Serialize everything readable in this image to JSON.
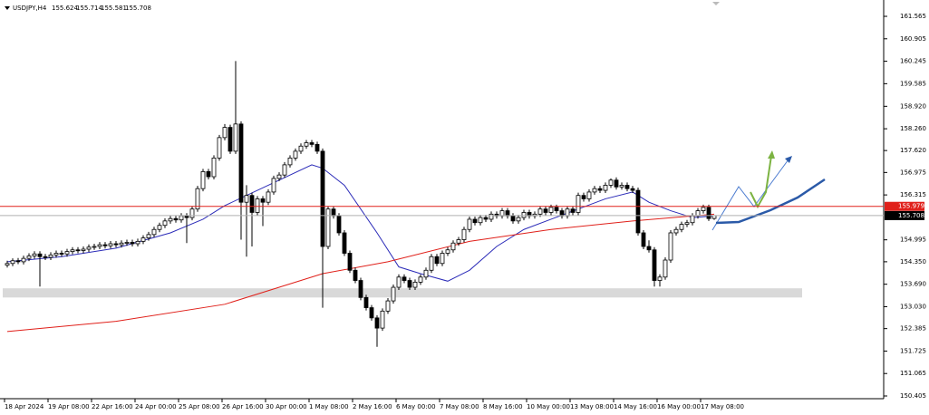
{
  "chart_data": {
    "type": "candlestick",
    "symbol": "USDJPY,H4",
    "ylim": [
      150.325,
      162.045
    ],
    "yticks": [
      {
        "value": 161.565,
        "label": "161.565"
      },
      {
        "value": 160.905,
        "label": "160.905"
      },
      {
        "value": 160.245,
        "label": "160.245"
      },
      {
        "value": 159.585,
        "label": "159.585"
      },
      {
        "value": 158.92,
        "label": "158.920"
      },
      {
        "value": 158.26,
        "label": "158.260"
      },
      {
        "value": 157.62,
        "label": "157.620"
      },
      {
        "value": 156.975,
        "label": "156.975"
      },
      {
        "value": 156.315,
        "label": "156.315"
      },
      {
        "value": 154.995,
        "label": "154.995"
      },
      {
        "value": 154.35,
        "label": "154.350"
      },
      {
        "value": 153.69,
        "label": "153.690"
      },
      {
        "value": 153.03,
        "label": "153.030"
      },
      {
        "value": 152.385,
        "label": "152.385"
      },
      {
        "value": 151.725,
        "label": "151.725"
      },
      {
        "value": 151.065,
        "label": "151.065"
      },
      {
        "value": 150.405,
        "label": "150.405"
      }
    ],
    "categories": [
      "18 Apr 2024",
      null,
      null,
      null,
      null,
      null,
      null,
      null,
      "19 Apr 08:00",
      null,
      null,
      null,
      null,
      null,
      null,
      null,
      "22 Apr 16:00",
      null,
      null,
      null,
      null,
      null,
      null,
      null,
      "24 Apr 00:00",
      null,
      null,
      null,
      null,
      null,
      null,
      null,
      "25 Apr 08:00",
      null,
      null,
      null,
      null,
      null,
      null,
      null,
      "26 Apr 16:00",
      null,
      null,
      null,
      null,
      null,
      null,
      null,
      "30 Apr 00:00",
      null,
      null,
      null,
      null,
      null,
      null,
      null,
      "1 May 08:00",
      null,
      null,
      null,
      null,
      null,
      null,
      null,
      "2 May 16:00",
      null,
      null,
      null,
      null,
      null,
      null,
      null,
      "6 May 00:00",
      null,
      null,
      null,
      null,
      null,
      null,
      null,
      "7 May 08:00",
      null,
      null,
      null,
      null,
      null,
      null,
      null,
      "8 May 16:00",
      null,
      null,
      null,
      null,
      null,
      null,
      null,
      "10 May 00:00",
      null,
      null,
      null,
      null,
      null,
      null,
      null,
      "13 May 08:00",
      null,
      null,
      null,
      null,
      null,
      null,
      null,
      "14 May 16:00",
      null,
      null,
      null,
      null,
      null,
      null,
      null,
      "16 May 00:00",
      null,
      null,
      null,
      null,
      null,
      null,
      null,
      "17 May 08:00",
      null,
      null
    ],
    "ohlc": [
      [
        154.25,
        154.38,
        154.18,
        154.3
      ],
      [
        154.3,
        154.45,
        154.22,
        154.38
      ],
      [
        154.38,
        154.46,
        154.28,
        154.35
      ],
      [
        154.35,
        154.53,
        154.27,
        154.45
      ],
      [
        154.45,
        154.6,
        154.37,
        154.52
      ],
      [
        154.52,
        154.66,
        154.44,
        154.58
      ],
      [
        154.58,
        154.66,
        153.62,
        154.5
      ],
      [
        154.5,
        154.58,
        154.4,
        154.48
      ],
      [
        154.48,
        154.63,
        154.4,
        154.55
      ],
      [
        154.55,
        154.68,
        154.47,
        154.6
      ],
      [
        154.6,
        154.68,
        154.5,
        154.58
      ],
      [
        154.58,
        154.73,
        154.5,
        154.65
      ],
      [
        154.65,
        154.78,
        154.57,
        154.7
      ],
      [
        154.7,
        154.78,
        154.6,
        154.68
      ],
      [
        154.68,
        154.8,
        154.6,
        154.72
      ],
      [
        154.72,
        154.86,
        154.64,
        154.78
      ],
      [
        154.78,
        154.88,
        154.7,
        154.8
      ],
      [
        154.8,
        154.93,
        154.72,
        154.85
      ],
      [
        154.85,
        154.93,
        154.74,
        154.82
      ],
      [
        154.82,
        154.96,
        154.74,
        154.88
      ],
      [
        154.88,
        154.96,
        154.77,
        154.85
      ],
      [
        154.85,
        154.98,
        154.77,
        154.9
      ],
      [
        154.9,
        155.0,
        154.82,
        154.92
      ],
      [
        154.92,
        155.0,
        154.8,
        154.88
      ],
      [
        154.88,
        155.03,
        154.8,
        154.95
      ],
      [
        154.95,
        155.13,
        154.87,
        155.05
      ],
      [
        155.05,
        155.23,
        154.97,
        155.15
      ],
      [
        155.15,
        155.38,
        155.07,
        155.3
      ],
      [
        155.3,
        155.5,
        155.22,
        155.42
      ],
      [
        155.42,
        155.63,
        155.34,
        155.55
      ],
      [
        155.55,
        155.7,
        155.47,
        155.62
      ],
      [
        155.62,
        155.7,
        155.5,
        155.58
      ],
      [
        155.58,
        155.78,
        155.5,
        155.7
      ],
      [
        155.7,
        155.78,
        154.9,
        155.65
      ],
      [
        155.65,
        155.98,
        155.57,
        155.9
      ],
      [
        155.9,
        156.58,
        155.82,
        156.5
      ],
      [
        156.5,
        157.08,
        156.42,
        157.0
      ],
      [
        157.0,
        157.08,
        156.77,
        156.85
      ],
      [
        156.85,
        157.48,
        156.77,
        157.4
      ],
      [
        157.4,
        158.08,
        157.32,
        158.0
      ],
      [
        158.0,
        158.4,
        157.92,
        158.3
      ],
      [
        158.3,
        158.38,
        157.52,
        157.6
      ],
      [
        157.6,
        160.25,
        157.52,
        158.4
      ],
      [
        158.4,
        158.48,
        155.0,
        156.1
      ],
      [
        156.1,
        156.6,
        154.5,
        156.3
      ],
      [
        156.3,
        156.38,
        154.8,
        155.8
      ],
      [
        155.8,
        156.28,
        155.72,
        156.2
      ],
      [
        156.2,
        156.28,
        155.4,
        156.1
      ],
      [
        156.1,
        156.48,
        156.02,
        156.4
      ],
      [
        156.4,
        156.88,
        156.32,
        156.8
      ],
      [
        156.8,
        156.98,
        156.72,
        156.9
      ],
      [
        156.9,
        157.28,
        156.82,
        157.2
      ],
      [
        157.2,
        157.48,
        157.12,
        157.4
      ],
      [
        157.4,
        157.68,
        157.32,
        157.6
      ],
      [
        157.6,
        157.83,
        157.52,
        157.75
      ],
      [
        157.75,
        157.93,
        157.67,
        157.85
      ],
      [
        157.85,
        157.93,
        157.72,
        157.8
      ],
      [
        157.8,
        157.88,
        157.52,
        157.6
      ],
      [
        157.6,
        157.68,
        153.0,
        154.8
      ],
      [
        154.8,
        155.98,
        154.72,
        155.9
      ],
      [
        155.9,
        155.98,
        155.62,
        155.7
      ],
      [
        155.7,
        155.78,
        155.12,
        155.2
      ],
      [
        155.2,
        155.28,
        154.52,
        154.6
      ],
      [
        154.6,
        154.68,
        154.02,
        154.1
      ],
      [
        154.1,
        154.18,
        153.72,
        153.8
      ],
      [
        153.8,
        153.88,
        153.22,
        153.3
      ],
      [
        153.3,
        153.38,
        152.92,
        153.0
      ],
      [
        153.0,
        153.08,
        152.62,
        152.7
      ],
      [
        152.7,
        152.78,
        151.85,
        152.4
      ],
      [
        152.4,
        152.98,
        152.32,
        152.9
      ],
      [
        152.9,
        153.28,
        152.82,
        153.2
      ],
      [
        153.2,
        153.68,
        153.12,
        153.6
      ],
      [
        153.6,
        153.98,
        153.52,
        153.9
      ],
      [
        153.9,
        153.98,
        153.72,
        153.8
      ],
      [
        153.8,
        153.88,
        153.52,
        153.6
      ],
      [
        153.6,
        153.83,
        153.52,
        153.75
      ],
      [
        153.75,
        153.98,
        153.67,
        153.9
      ],
      [
        153.9,
        154.18,
        153.82,
        154.1
      ],
      [
        154.1,
        154.58,
        154.02,
        154.5
      ],
      [
        154.5,
        154.58,
        154.22,
        154.3
      ],
      [
        154.3,
        154.68,
        154.22,
        154.6
      ],
      [
        154.6,
        154.78,
        154.52,
        154.7
      ],
      [
        154.7,
        154.98,
        154.62,
        154.9
      ],
      [
        154.9,
        155.08,
        154.82,
        155.0
      ],
      [
        155.0,
        155.38,
        154.92,
        155.3
      ],
      [
        155.3,
        155.68,
        155.22,
        155.6
      ],
      [
        155.6,
        155.68,
        155.42,
        155.5
      ],
      [
        155.5,
        155.73,
        155.42,
        155.65
      ],
      [
        155.65,
        155.73,
        155.52,
        155.6
      ],
      [
        155.6,
        155.83,
        155.52,
        155.75
      ],
      [
        155.75,
        155.83,
        155.62,
        155.7
      ],
      [
        155.7,
        155.93,
        155.62,
        155.85
      ],
      [
        155.85,
        155.93,
        155.62,
        155.7
      ],
      [
        155.7,
        155.78,
        155.47,
        155.55
      ],
      [
        155.55,
        155.73,
        155.47,
        155.65
      ],
      [
        155.65,
        155.88,
        155.57,
        155.8
      ],
      [
        155.8,
        155.88,
        155.62,
        155.7
      ],
      [
        155.7,
        155.83,
        155.62,
        155.75
      ],
      [
        155.75,
        155.98,
        155.67,
        155.9
      ],
      [
        155.9,
        155.98,
        155.72,
        155.8
      ],
      [
        155.8,
        156.03,
        155.72,
        155.95
      ],
      [
        155.95,
        156.03,
        155.77,
        155.85
      ],
      [
        155.85,
        155.93,
        155.62,
        155.7
      ],
      [
        155.7,
        155.98,
        155.62,
        155.9
      ],
      [
        155.9,
        155.98,
        155.72,
        155.8
      ],
      [
        155.8,
        156.38,
        155.72,
        156.3
      ],
      [
        156.3,
        156.38,
        156.12,
        156.2
      ],
      [
        156.2,
        156.48,
        156.12,
        156.4
      ],
      [
        156.4,
        156.58,
        156.32,
        156.5
      ],
      [
        156.5,
        156.58,
        156.37,
        156.45
      ],
      [
        156.45,
        156.68,
        156.37,
        156.6
      ],
      [
        156.6,
        156.8,
        156.52,
        156.75
      ],
      [
        156.75,
        156.83,
        156.47,
        156.55
      ],
      [
        156.55,
        156.68,
        156.47,
        156.6
      ],
      [
        156.6,
        156.68,
        156.42,
        156.5
      ],
      [
        156.5,
        156.58,
        156.37,
        156.45
      ],
      [
        156.45,
        156.53,
        155.12,
        155.2
      ],
      [
        155.2,
        155.28,
        154.72,
        154.8
      ],
      [
        154.8,
        154.98,
        154.62,
        154.7
      ],
      [
        154.7,
        154.78,
        153.62,
        153.8
      ],
      [
        153.8,
        153.98,
        153.62,
        153.9
      ],
      [
        153.9,
        154.48,
        153.82,
        154.4
      ],
      [
        154.4,
        155.28,
        154.32,
        155.2
      ],
      [
        155.2,
        155.38,
        155.12,
        155.3
      ],
      [
        155.3,
        155.53,
        155.22,
        155.45
      ],
      [
        155.45,
        155.58,
        155.37,
        155.5
      ],
      [
        155.5,
        155.78,
        155.42,
        155.7
      ],
      [
        155.7,
        155.93,
        155.62,
        155.85
      ],
      [
        155.85,
        156.03,
        155.77,
        155.95
      ],
      [
        155.95,
        156.03,
        155.55,
        155.62
      ],
      [
        155.624,
        155.714,
        155.581,
        155.708
      ]
    ],
    "series": [
      {
        "color": "#2b2bb8",
        "x": [
          0,
          10,
          20,
          30,
          36,
          40,
          48,
          56,
          58,
          62,
          68,
          72,
          76,
          81,
          85,
          90,
          95,
          100,
          105,
          110,
          115,
          118,
          122,
          126,
          130
        ],
        "values": [
          154.35,
          154.5,
          154.75,
          155.2,
          155.6,
          156.0,
          156.6,
          157.2,
          157.1,
          156.6,
          155.2,
          154.2,
          154.0,
          153.78,
          154.1,
          154.8,
          155.3,
          155.6,
          155.9,
          156.2,
          156.4,
          156.1,
          155.85,
          155.65,
          155.7
        ]
      },
      {
        "color": "#e0201a",
        "x": [
          0,
          20,
          40,
          58,
          70,
          85,
          100,
          115,
          130
        ],
        "values": [
          152.3,
          152.6,
          153.1,
          154.0,
          154.35,
          154.95,
          155.3,
          155.55,
          155.75
        ]
      }
    ],
    "zone": [
      153.3,
      153.57
    ],
    "levels": [
      {
        "value": 155.979,
        "color": "#e0201a"
      },
      {
        "value": 155.708,
        "color": "#b0b0b0"
      }
    ]
  }
}
